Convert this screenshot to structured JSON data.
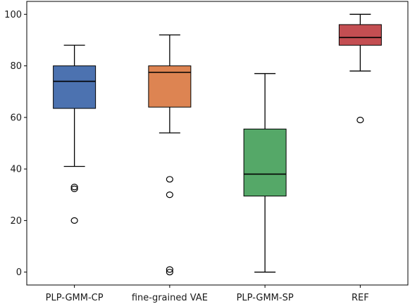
{
  "chart_data": {
    "type": "box",
    "title": "",
    "xlabel": "",
    "ylabel": "",
    "ylim": [
      -5,
      105
    ],
    "yticks": [
      0,
      20,
      40,
      60,
      80,
      100
    ],
    "grid": false,
    "legend": "none",
    "categories": [
      "PLP-GMM-CP",
      "fine-grained VAE",
      "PLP-GMM-SP",
      "REF"
    ],
    "boxes": [
      {
        "name": "PLP-GMM-CP",
        "color": "#4c72b0",
        "whisker_low": 41,
        "q1": 63.5,
        "median": 74,
        "q3": 80,
        "whisker_high": 88,
        "fliers": [
          33,
          32.3,
          20
        ]
      },
      {
        "name": "fine-grained VAE",
        "color": "#dd8452",
        "whisker_low": 54,
        "q1": 64,
        "median": 77.5,
        "q3": 80,
        "whisker_high": 92,
        "fliers": [
          36,
          30,
          1,
          0
        ]
      },
      {
        "name": "PLP-GMM-SP",
        "color": "#55a868",
        "whisker_low": 0,
        "q1": 29.5,
        "median": 38,
        "q3": 55.5,
        "whisker_high": 77,
        "fliers": []
      },
      {
        "name": "REF",
        "color": "#c44e52",
        "whisker_low": 78,
        "q1": 88,
        "median": 91,
        "q3": 96,
        "whisker_high": 100,
        "fliers": [
          59
        ]
      }
    ]
  }
}
